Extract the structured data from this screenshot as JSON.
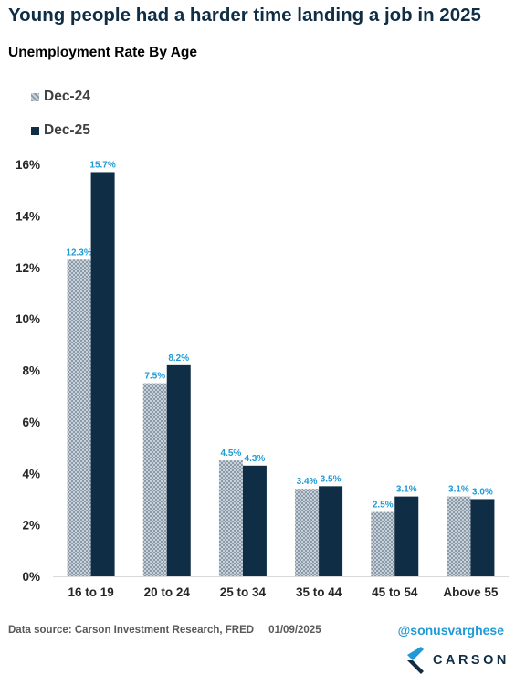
{
  "title": "Young people had a harder time landing a job in 2025",
  "subtitle": "Unemployment Rate By Age",
  "footer": {
    "source": "Data source: Carson Investment Research, FRED",
    "date": "01/09/2025",
    "handle": "@sonusvarghese"
  },
  "logo": {
    "text": "CARSON",
    "icon": "carson-chevron-logo"
  },
  "colors": {
    "dec24_fill": "#8a9aa8",
    "dec24_pattern": "#c9d1d8",
    "dec25_fill": "#0f2d45",
    "data_label": "#1f9ad6",
    "axis_text": "#262626",
    "gridline": "#d9d9d9"
  },
  "chart_data": {
    "type": "bar",
    "title": "Unemployment Rate By Age",
    "xlabel": "",
    "ylabel": "",
    "categories": [
      "16 to 19",
      "20 to 24",
      "25 to 34",
      "35 to 44",
      "45 to 54",
      "Above 55"
    ],
    "series": [
      {
        "name": "Dec-24",
        "values": [
          12.3,
          7.5,
          4.5,
          3.4,
          2.5,
          3.1
        ],
        "labels": [
          "12.3%",
          "7.5%",
          "4.5%",
          "3.4%",
          "2.5%",
          "3.1%"
        ]
      },
      {
        "name": "Dec-25",
        "values": [
          15.7,
          8.2,
          4.3,
          3.5,
          3.1,
          3.0
        ],
        "labels": [
          "15.7%",
          "8.2%",
          "4.3%",
          "3.5%",
          "3.1%",
          "3.0%"
        ]
      }
    ],
    "ylim": [
      0,
      16
    ],
    "yticks": [
      0,
      2,
      4,
      6,
      8,
      10,
      12,
      14,
      16
    ],
    "ytick_labels": [
      "0%",
      "2%",
      "4%",
      "6%",
      "8%",
      "10%",
      "12%",
      "14%",
      "16%"
    ],
    "grid": false,
    "legend": "top-left"
  }
}
